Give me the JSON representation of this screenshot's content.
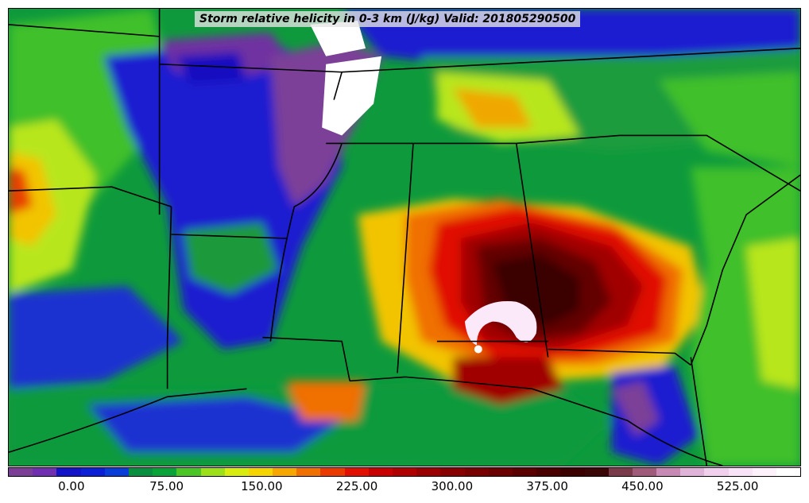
{
  "title": "Storm relative helicity in 0-3 km (J/kg) Valid: 201805290500",
  "colorbar": {
    "colors": [
      "#7b3f98",
      "#6f2fb0",
      "#1212c8",
      "#0a1fd6",
      "#0a3cd8",
      "#089040",
      "#0aa33a",
      "#4cc626",
      "#9ce01a",
      "#d8ec10",
      "#f6d400",
      "#f6a800",
      "#f07000",
      "#ea3a00",
      "#e21000",
      "#c80000",
      "#b00000",
      "#9a0000",
      "#880000",
      "#780000",
      "#6a0000",
      "#5a0000",
      "#4a0000",
      "#3c0000",
      "#3a0606",
      "#7a3a4a",
      "#a05a7a",
      "#c88ab4",
      "#e0b4d8",
      "#f0d0ec",
      "#f8e4f6",
      "#fdf2fc",
      "#ffffff"
    ],
    "ticks": [
      {
        "label": "0.00",
        "value": 0
      },
      {
        "label": "75.00",
        "value": 75
      },
      {
        "label": "150.00",
        "value": 150
      },
      {
        "label": "225.00",
        "value": 225
      },
      {
        "label": "300.00",
        "value": 300
      },
      {
        "label": "375.00",
        "value": 375
      },
      {
        "label": "450.00",
        "value": 450
      },
      {
        "label": "525.00",
        "value": 525
      }
    ],
    "range": [
      -50,
      575
    ]
  }
}
